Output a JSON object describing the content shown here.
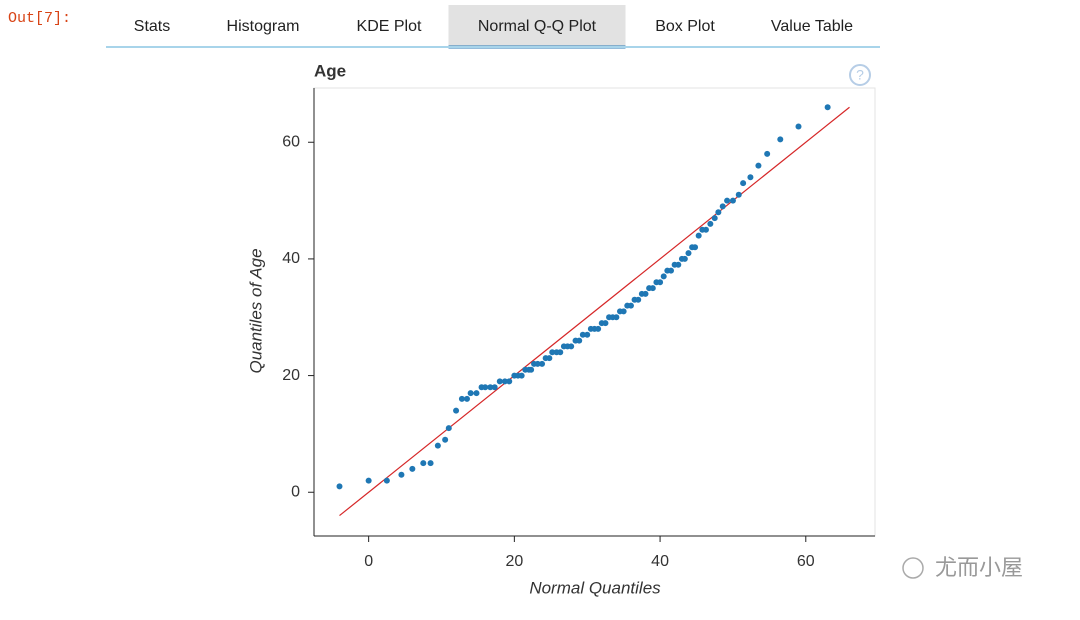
{
  "prompt": "Out[7]:",
  "tabs": [
    "Stats",
    "Histogram",
    "KDE Plot",
    "Normal Q-Q Plot",
    "Box Plot",
    "Value Table"
  ],
  "active_tab": 3,
  "help_icon": "?",
  "watermark": "尤而小屋",
  "chart_data": {
    "type": "scatter",
    "title": "Age",
    "x_label": "Normal Quantiles",
    "y_label": "Quantiles of Age",
    "xlim": [
      -7.5,
      69.5
    ],
    "ylim": [
      -7.5,
      69.3
    ],
    "xticks": [
      0,
      20,
      40,
      60
    ],
    "yticks": [
      0,
      20,
      40,
      60
    ],
    "color": "#1f77b4",
    "x": [
      -4,
      0,
      2.5,
      4.5,
      6,
      7.5,
      8.5,
      9.5,
      10.5,
      11,
      12,
      12.8,
      13.5,
      14,
      14.8,
      15.5,
      16,
      16.7,
      17.3,
      18,
      18.7,
      19.3,
      20,
      20.5,
      21,
      21.5,
      22,
      22.3,
      22.7,
      23.2,
      23.8,
      24.3,
      24.8,
      25.2,
      25.8,
      26.3,
      26.8,
      27.3,
      27.8,
      28.4,
      28.9,
      29.4,
      30,
      30.5,
      31,
      31.5,
      32,
      32.5,
      33,
      33.5,
      34,
      34.5,
      35,
      35.5,
      36,
      36.5,
      37,
      37.5,
      38,
      38.5,
      39,
      39.5,
      40,
      40.5,
      41,
      41.5,
      42,
      42.5,
      43,
      43.4,
      43.9,
      44.4,
      44.8,
      45.3,
      45.8,
      46.3,
      46.9,
      47.5,
      48,
      48.6,
      49.2,
      50,
      50.8,
      51.4,
      52.4,
      53.5,
      54.7,
      56.5,
      59,
      63
    ],
    "values": [
      1,
      2,
      2,
      3,
      4,
      5,
      5,
      8,
      9,
      11,
      14,
      16,
      16,
      17,
      17,
      18,
      18,
      18,
      18,
      19,
      19,
      19,
      20,
      20,
      20,
      21,
      21,
      21,
      22,
      22,
      22,
      23,
      23,
      24,
      24,
      24,
      25,
      25,
      25,
      26,
      26,
      27,
      27,
      28,
      28,
      28,
      29,
      29,
      30,
      30,
      30,
      31,
      31,
      32,
      32,
      33,
      33,
      34,
      34,
      35,
      35,
      36,
      36,
      37,
      38,
      38,
      39,
      39,
      40,
      40,
      41,
      42,
      42,
      44,
      45,
      45,
      46,
      47,
      48,
      49,
      50,
      50,
      51,
      53,
      54,
      56,
      58,
      60.5,
      62.7,
      66
    ],
    "reference_line": {
      "x": [
        -4,
        66
      ],
      "values": [
        -4,
        66
      ],
      "color": "#d62728"
    }
  }
}
